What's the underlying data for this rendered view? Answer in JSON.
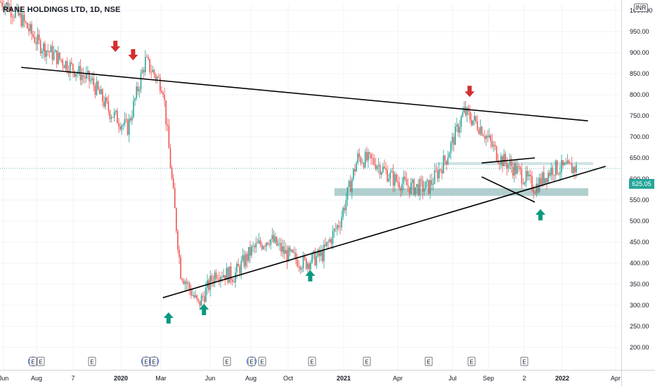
{
  "header": {
    "title": "RANE HOLDINGS LTD, 1D, NSE",
    "currency_badge": "INR"
  },
  "last_price": {
    "label": "625.05",
    "value": 625.05,
    "color": "#26a69a"
  },
  "colors": {
    "up_candle": "#26a69a",
    "down_candle": "#ef5350",
    "support_zone": "#b2cfcf",
    "arrow_up": "#089981",
    "arrow_down": "#d32f2f",
    "trendline": "#000000",
    "grid": "#f0f3fa",
    "axis_text": "#131722"
  },
  "events": [
    "E",
    "E",
    "E",
    "E",
    "E",
    "E",
    "E",
    "E",
    "E",
    "E",
    "E",
    "E",
    "E"
  ],
  "chart_data": {
    "type": "line",
    "title": "RANE HOLDINGS LTD, 1D, NSE",
    "xlabel": "",
    "ylabel": "",
    "ylim": [
      190,
      1050
    ],
    "y_ticks": [
      "1050.00",
      "1000.00",
      "950.00",
      "900.00",
      "850.00",
      "800.00",
      "750.00",
      "700.00",
      "650.00",
      "600.00",
      "550.00",
      "500.00",
      "450.00",
      "400.00",
      "350.00",
      "300.00",
      "250.00",
      "200.00"
    ],
    "x_ticks": [
      "Jun",
      "Aug",
      "7",
      "2020",
      "Mar",
      "Jun",
      "Aug",
      "Oct",
      "2021",
      "Apr",
      "Jul",
      "Sep",
      "2",
      "2022",
      "Apr"
    ],
    "x": [
      "2019-06",
      "2019-07",
      "2019-08",
      "2019-09",
      "2019-10",
      "2019-11",
      "2019-12",
      "2020-01",
      "2020-02",
      "2020-03",
      "2020-04",
      "2020-05",
      "2020-06",
      "2020-07",
      "2020-08",
      "2020-09",
      "2020-10",
      "2020-11",
      "2020-12",
      "2021-01",
      "2021-02",
      "2021-03",
      "2021-04",
      "2021-05",
      "2021-06",
      "2021-07",
      "2021-08",
      "2021-09",
      "2021-10",
      "2021-11",
      "2021-12",
      "2022-01"
    ],
    "series": [
      {
        "values": [
          1020,
          980,
          920,
          890,
          860,
          830,
          760,
          720,
          880,
          820,
          380,
          300,
          380,
          370,
          430,
          460,
          420,
          400,
          420,
          500,
          650,
          640,
          600,
          580,
          580,
          650,
          760,
          720,
          650,
          620,
          580,
          625
        ]
      }
    ],
    "trendlines": [
      {
        "from": [
          "2019-07",
          865
        ],
        "to": [
          "2022-03",
          738
        ]
      },
      {
        "from": [
          "2020-03",
          318
        ],
        "to": [
          "2022-04",
          630
        ]
      },
      {
        "from": [
          "2021-09",
          638
        ],
        "to": [
          "2021-12",
          650
        ]
      },
      {
        "from": [
          "2021-09",
          605
        ],
        "to": [
          "2021-12",
          545
        ]
      }
    ],
    "support_zone": [
      560,
      578
    ],
    "resistance_band": [
      633,
      640
    ],
    "markers": [
      {
        "date": "2019-12",
        "price": 905,
        "kind": "down"
      },
      {
        "date": "2020-01",
        "price": 885,
        "kind": "down"
      },
      {
        "date": "2021-08",
        "price": 798,
        "kind": "down"
      },
      {
        "date": "2020-03",
        "price": 280,
        "kind": "up"
      },
      {
        "date": "2020-05",
        "price": 300,
        "kind": "up"
      },
      {
        "date": "2020-11",
        "price": 380,
        "kind": "up"
      },
      {
        "date": "2021-12",
        "price": 525,
        "kind": "up"
      }
    ],
    "grid": true,
    "legend": "none"
  }
}
